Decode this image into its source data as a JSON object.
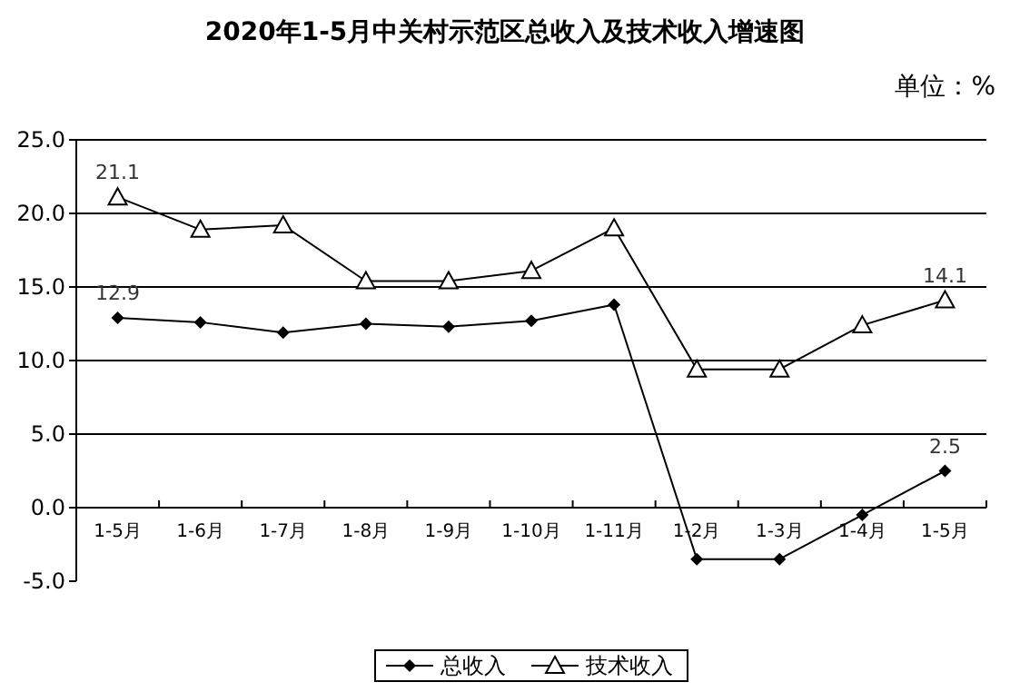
{
  "chart_data": {
    "type": "line",
    "title": "2020年1-5月中关村示范区总收入及技术收入增速图",
    "annotations": [
      "单位：%"
    ],
    "categories": [
      "1-5月",
      "1-6月",
      "1-7月",
      "1-8月",
      "1-9月",
      "1-10月",
      "1-11月",
      "1-2月",
      "1-3月",
      "1-4月",
      "1-5月"
    ],
    "series": [
      {
        "name": "总收入",
        "color": "#000000",
        "marker": "diamond",
        "values": [
          12.9,
          12.6,
          11.9,
          12.5,
          12.3,
          12.7,
          13.8,
          -3.5,
          -3.5,
          -0.5,
          2.5
        ],
        "value_labels": [
          "12.9",
          null,
          null,
          null,
          null,
          null,
          null,
          null,
          null,
          null,
          "2.5"
        ]
      },
      {
        "name": "技术收入",
        "color": "#000000",
        "marker": "triangle",
        "values": [
          21.1,
          18.9,
          19.2,
          15.4,
          15.4,
          16.1,
          19.0,
          9.4,
          9.4,
          12.4,
          14.1
        ],
        "value_labels": [
          "21.1",
          null,
          null,
          null,
          null,
          null,
          null,
          null,
          null,
          null,
          "14.1"
        ]
      }
    ],
    "ylim": [
      -5,
      25
    ],
    "yticks": [
      {
        "value": -5,
        "label": "-5.0"
      },
      {
        "value": 0,
        "label": "0.0"
      },
      {
        "value": 5,
        "label": "5.0"
      },
      {
        "value": 10,
        "label": "10.0"
      },
      {
        "value": 15,
        "label": "15.0"
      },
      {
        "value": 20,
        "label": "20.0"
      },
      {
        "value": 25,
        "label": "25.0"
      }
    ],
    "grid": "y",
    "legend": "bottom"
  }
}
